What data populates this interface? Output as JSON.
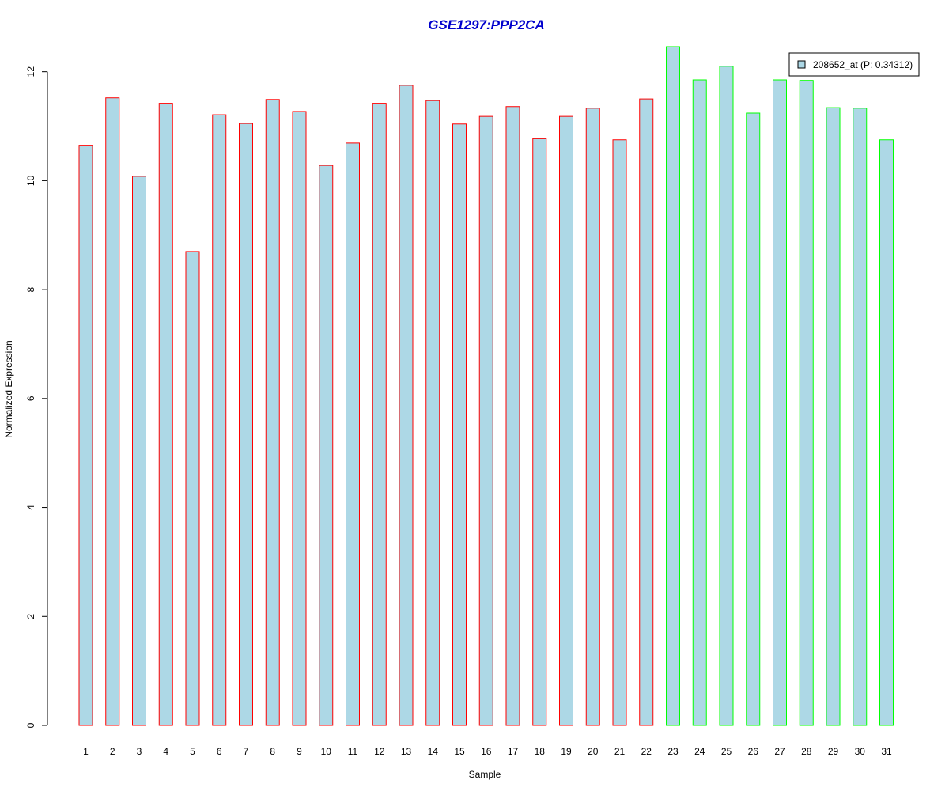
{
  "chart_data": {
    "type": "bar",
    "title": "GSE1297:PPP2CA",
    "xlabel": "Sample",
    "ylabel": "Normalized Expression",
    "categories": [
      "1",
      "2",
      "3",
      "4",
      "5",
      "6",
      "7",
      "8",
      "9",
      "10",
      "11",
      "12",
      "13",
      "14",
      "15",
      "16",
      "17",
      "18",
      "19",
      "20",
      "21",
      "22",
      "23",
      "24",
      "25",
      "26",
      "27",
      "28",
      "29",
      "30",
      "31"
    ],
    "series": [
      {
        "name": "208652_at (P: 0.34312)",
        "values": [
          10.65,
          11.52,
          10.08,
          11.42,
          8.7,
          11.21,
          11.05,
          11.49,
          11.27,
          10.28,
          10.69,
          11.42,
          11.75,
          11.47,
          11.04,
          11.18,
          11.36,
          10.77,
          11.18,
          11.33,
          10.75,
          11.5,
          12.46,
          11.85,
          12.1,
          11.24,
          11.85,
          11.84,
          11.34,
          11.33,
          10.75
        ]
      }
    ],
    "groups": [
      "red",
      "red",
      "red",
      "red",
      "red",
      "red",
      "red",
      "red",
      "red",
      "red",
      "red",
      "red",
      "red",
      "red",
      "red",
      "red",
      "red",
      "red",
      "red",
      "red",
      "red",
      "red",
      "green",
      "green",
      "green",
      "green",
      "green",
      "green",
      "green",
      "green",
      "green"
    ],
    "ylim": [
      0,
      12.46
    ],
    "yticks": [
      0,
      2,
      4,
      6,
      8,
      10,
      12
    ],
    "grid": false,
    "legend_position": "top-right",
    "colors": {
      "bar_fill": "#add8e6",
      "group_red": "#ff0000",
      "group_green": "#00ff00",
      "title": "#0000cd",
      "axis": "#000000"
    }
  }
}
